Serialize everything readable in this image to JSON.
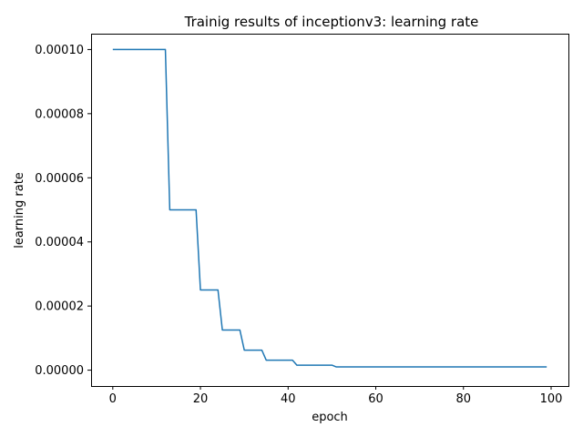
{
  "chart_data": {
    "type": "line",
    "title": "Trainig results of inceptionv3: learning rate",
    "xlabel": "epoch",
    "ylabel": "learning rate",
    "xlim": [
      -4.95,
      103.95
    ],
    "ylim": [
      -4.945e-06,
      0.000104945
    ],
    "xticks": [
      0,
      20,
      40,
      60,
      80,
      100
    ],
    "xtick_labels": [
      "0",
      "20",
      "40",
      "60",
      "80",
      "100"
    ],
    "yticks": [
      0,
      2e-05,
      4e-05,
      6e-05,
      8e-05,
      0.0001
    ],
    "ytick_labels": [
      "0.00000",
      "0.00002",
      "0.00004",
      "0.00006",
      "0.00008",
      "0.00010"
    ],
    "grid": false,
    "legend": "none",
    "series": [
      {
        "color": "#1f77b4",
        "x": [
          0,
          1,
          2,
          3,
          4,
          5,
          6,
          7,
          8,
          9,
          10,
          11,
          12,
          13,
          14,
          15,
          16,
          17,
          18,
          19,
          20,
          21,
          22,
          23,
          24,
          25,
          26,
          27,
          28,
          29,
          30,
          31,
          32,
          33,
          34,
          35,
          36,
          37,
          38,
          39,
          40,
          41,
          42,
          43,
          44,
          45,
          46,
          47,
          48,
          49,
          50,
          51,
          52,
          53,
          54,
          55,
          56,
          57,
          58,
          59,
          60,
          61,
          62,
          63,
          64,
          65,
          66,
          67,
          68,
          69,
          70,
          71,
          72,
          73,
          74,
          75,
          76,
          77,
          78,
          79,
          80,
          81,
          82,
          83,
          84,
          85,
          86,
          87,
          88,
          89,
          90,
          91,
          92,
          93,
          94,
          95,
          96,
          97,
          98,
          99
        ],
        "y": [
          0.0001,
          0.0001,
          0.0001,
          0.0001,
          0.0001,
          0.0001,
          0.0001,
          0.0001,
          0.0001,
          0.0001,
          0.0001,
          0.0001,
          0.0001,
          5e-05,
          5e-05,
          5e-05,
          5e-05,
          5e-05,
          5e-05,
          5e-05,
          2.5e-05,
          2.5e-05,
          2.5e-05,
          2.5e-05,
          2.5e-05,
          1.25e-05,
          1.25e-05,
          1.25e-05,
          1.25e-05,
          1.25e-05,
          6.25e-06,
          6.25e-06,
          6.25e-06,
          6.25e-06,
          6.25e-06,
          3.125e-06,
          3.125e-06,
          3.125e-06,
          3.125e-06,
          3.125e-06,
          3.125e-06,
          3.125e-06,
          1.5625e-06,
          1.5625e-06,
          1.5625e-06,
          1.5625e-06,
          1.5625e-06,
          1.5625e-06,
          1.5625e-06,
          1.5625e-06,
          1.5625e-06,
          1e-06,
          1e-06,
          1e-06,
          1e-06,
          1e-06,
          1e-06,
          1e-06,
          1e-06,
          1e-06,
          1e-06,
          1e-06,
          1e-06,
          1e-06,
          1e-06,
          1e-06,
          1e-06,
          1e-06,
          1e-06,
          1e-06,
          1e-06,
          1e-06,
          1e-06,
          1e-06,
          1e-06,
          1e-06,
          1e-06,
          1e-06,
          1e-06,
          1e-06,
          1e-06,
          1e-06,
          1e-06,
          1e-06,
          1e-06,
          1e-06,
          1e-06,
          1e-06,
          1e-06,
          1e-06,
          1e-06,
          1e-06,
          1e-06,
          1e-06,
          1e-06,
          1e-06,
          1e-06,
          1e-06,
          1e-06,
          1e-06
        ]
      }
    ]
  }
}
